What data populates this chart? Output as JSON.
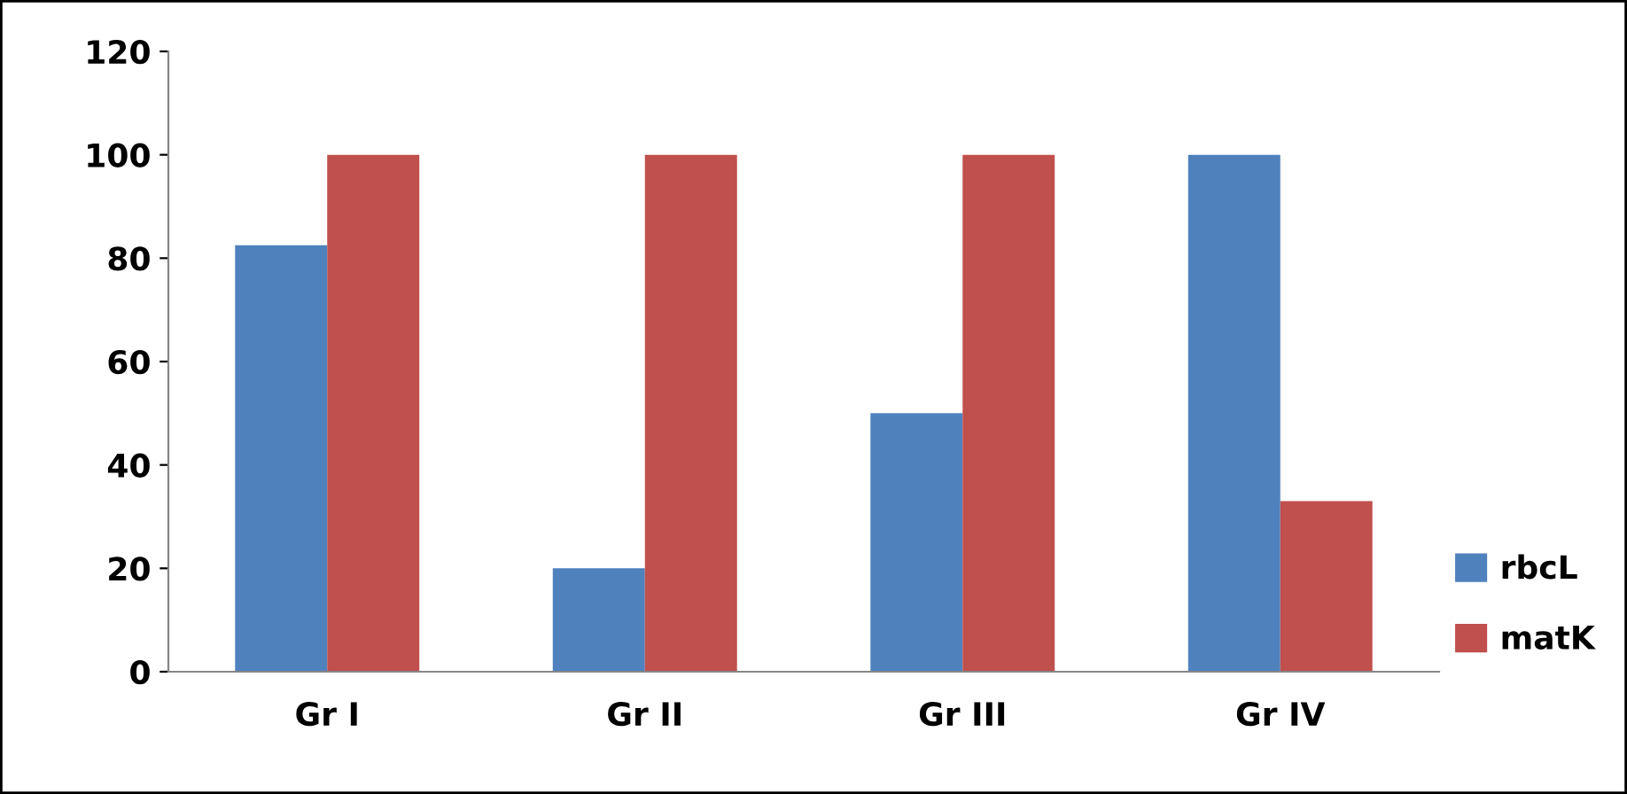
{
  "chart_data": {
    "type": "bar",
    "categories": [
      "Gr I",
      "Gr II",
      "Gr III",
      "Gr IV"
    ],
    "series": [
      {
        "name": "rbcL",
        "color": "#4f81bd",
        "values": [
          82.5,
          20,
          50,
          100
        ]
      },
      {
        "name": "matK",
        "color": "#c0504d",
        "values": [
          100,
          100,
          100,
          33
        ]
      }
    ],
    "ylim": [
      0,
      120
    ],
    "yticks": [
      0,
      20,
      40,
      60,
      80,
      100,
      120
    ],
    "grid": false,
    "legend": "right"
  }
}
